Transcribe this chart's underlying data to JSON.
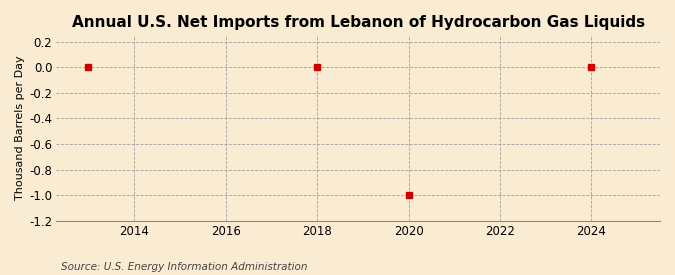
{
  "title": "Annual U.S. Net Imports from Lebanon of Hydrocarbon Gas Liquids",
  "ylabel": "Thousand Barrels per Day",
  "source": "Source: U.S. Energy Information Administration",
  "background_color": "#faecd2",
  "plot_bg_color": "#faecd2",
  "x_data": [
    2013,
    2018,
    2020,
    2024
  ],
  "y_data": [
    0,
    0,
    -1,
    0
  ],
  "marker_color": "#cc0000",
  "marker_size": 4,
  "xlim": [
    2012.3,
    2025.5
  ],
  "ylim": [
    -1.2,
    0.25
  ],
  "xticks": [
    2014,
    2016,
    2018,
    2020,
    2022,
    2024
  ],
  "yticks": [
    0.2,
    0.0,
    -0.2,
    -0.4,
    -0.6,
    -0.8,
    -1.0,
    -1.2
  ],
  "grid_color": "#999999",
  "title_fontsize": 11,
  "label_fontsize": 8,
  "tick_fontsize": 8.5,
  "source_fontsize": 7.5
}
